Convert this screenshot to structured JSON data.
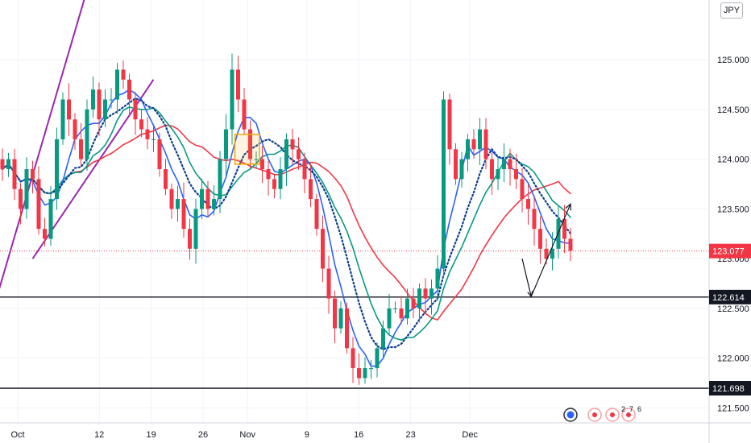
{
  "chart_data": {
    "type": "candlestick",
    "currency_badge": "JPY",
    "ylim": [
      121.35,
      125.6
    ],
    "y_ticks": [
      "121.500",
      "122.000",
      "122.500",
      "123.000",
      "123.500",
      "124.000",
      "124.500",
      "125.000"
    ],
    "x_ticks": [
      {
        "label": "Oct",
        "day": 0
      },
      {
        "label": "12",
        "day": 11
      },
      {
        "label": "19",
        "day": 18
      },
      {
        "label": "26",
        "day": 25
      },
      {
        "label": "Nov",
        "day": 31
      },
      {
        "label": "9",
        "day": 39
      },
      {
        "label": "16",
        "day": 46
      },
      {
        "label": "23",
        "day": 53
      },
      {
        "label": "Dec",
        "day": 61
      }
    ],
    "price_labels": [
      {
        "value": 123.077,
        "text": "123.077",
        "color": "#f23645",
        "line": "dotted"
      },
      {
        "value": 122.614,
        "text": "122.614",
        "color": "#131722",
        "line": "solid"
      },
      {
        "value": 121.698,
        "text": "121.698",
        "color": "#131722",
        "line": "solid"
      }
    ],
    "bar_closes": [
      123.9,
      124.0,
      123.7,
      123.5,
      123.9,
      123.8,
      123.3,
      123.2,
      123.6,
      124.2,
      124.6,
      124.4,
      124.2,
      124.0,
      124.5,
      124.7,
      124.4,
      124.6,
      124.6,
      124.9,
      124.8,
      124.6,
      124.4,
      124.3,
      124.2,
      124.2,
      123.9,
      123.7,
      123.5,
      123.6,
      123.3,
      123.1,
      123.5,
      123.7,
      123.5,
      123.6,
      124.0,
      124.3,
      124.9,
      124.6,
      124.3,
      124.0,
      124.0,
      123.9,
      123.8,
      123.7,
      123.9,
      124.2,
      124.1,
      124.0,
      123.8,
      123.6,
      123.3,
      122.9,
      122.6,
      122.3,
      122.5,
      122.1,
      121.9,
      121.8,
      121.9,
      121.9,
      122.1,
      122.3,
      122.5,
      122.5,
      122.4,
      122.6,
      122.5,
      122.7,
      122.6,
      122.7,
      122.9,
      124.6,
      124.1,
      123.8,
      124.0,
      124.2,
      124.1,
      124.3,
      124.0,
      123.8,
      123.9,
      124.0,
      123.9,
      123.8,
      123.6,
      123.5,
      123.3,
      123.1,
      123.0,
      123.1,
      123.4,
      123.2,
      123.08
    ],
    "projection_arrow": [
      {
        "bar": 86,
        "value": 123.0
      },
      {
        "bar": 87.5,
        "value": 122.62
      },
      {
        "bar": 94,
        "value": 123.55
      }
    ],
    "channel_lines": [
      {
        "color": "#9c27b0",
        "from": {
          "bar": -1,
          "value": 122.6
        },
        "to": {
          "bar": 14,
          "value": 125.7
        }
      },
      {
        "color": "#9c27b0",
        "from": {
          "bar": 5,
          "value": 123.0
        },
        "to": {
          "bar": 25,
          "value": 124.8
        }
      }
    ],
    "highlight_box": {
      "from_bar": 39,
      "to_bar": 42,
      "low": 123.95,
      "high": 124.25,
      "color": "#f7a600"
    },
    "moving_averages": [
      {
        "color": "#f23645",
        "style": "solid"
      },
      {
        "color": "#089981",
        "style": "solid"
      },
      {
        "color": "#2962ff",
        "style": "solid"
      },
      {
        "color": "#0b3f8f",
        "style": "dotted"
      }
    ],
    "legend_icons": [
      "globe-icon",
      "target-icon",
      "target-icon",
      "target-icon"
    ],
    "icon_counts": [
      "2",
      "7",
      "6"
    ]
  }
}
